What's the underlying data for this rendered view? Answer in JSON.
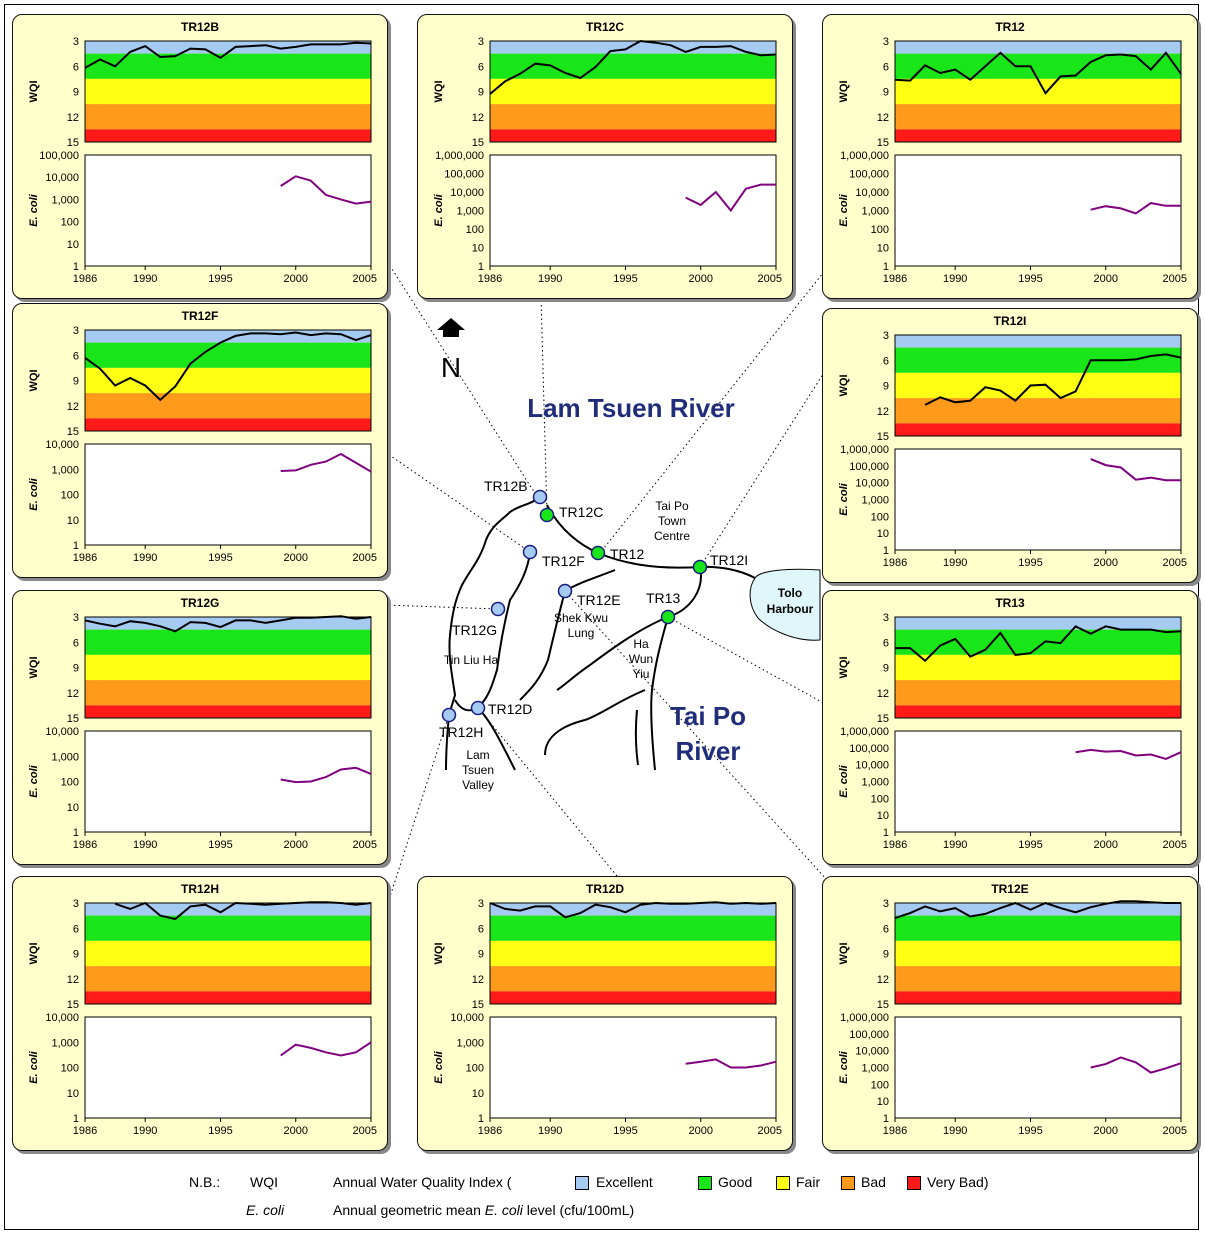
{
  "colors": {
    "excellent": "#a6cbf2",
    "good": "#19e619",
    "fair": "#ffff14",
    "bad": "#ff9a1a",
    "very_bad": "#ff1a1a",
    "wqi_line": "#000000",
    "ecoli_line": "#800080",
    "panel_bg": "#ffffcc",
    "river_label": "#1f2d7a"
  },
  "chart_data": [
    {
      "type": "line",
      "title": "TR12B",
      "wqi_ylabel": "WQI",
      "ecoli_ylabel": "E. coli",
      "x_ticks": [
        "1986",
        "1990",
        "1995",
        "2000",
        "2005"
      ],
      "wqi_ticks": [
        "3",
        "6",
        "9",
        "12",
        "15"
      ],
      "wqi_ylim": [
        3,
        15
      ],
      "ecoli_ticks": [
        "1",
        "10",
        "100",
        "1,000",
        "10,000",
        "100,000"
      ],
      "ecoli_ylim": [
        1,
        100000
      ],
      "wqi": {
        "x": [
          1986,
          1987,
          1988,
          1989,
          1990,
          1991,
          1992,
          1993,
          1994,
          1995,
          1996,
          1997,
          1998,
          1999,
          2000,
          2001,
          2002,
          2003,
          2004,
          2005
        ],
        "y": [
          6.2,
          5.2,
          6.0,
          4.3,
          3.6,
          4.9,
          4.8,
          3.9,
          4.0,
          5.0,
          3.7,
          3.6,
          3.5,
          3.9,
          3.7,
          3.4,
          3.4,
          3.4,
          3.2,
          3.3
        ]
      },
      "ecoli": {
        "x": [
          1999,
          2000,
          2001,
          2002,
          2003,
          2004,
          2005
        ],
        "y": [
          4000,
          11000,
          7000,
          1600,
          1000,
          650,
          800
        ]
      }
    },
    {
      "type": "line",
      "title": "TR12C",
      "wqi_ylabel": "WQI",
      "ecoli_ylabel": "E. coli",
      "x_ticks": [
        "1986",
        "1990",
        "1995",
        "2000",
        "2005"
      ],
      "wqi_ticks": [
        "3",
        "6",
        "9",
        "12",
        "15"
      ],
      "wqi_ylim": [
        3,
        15
      ],
      "ecoli_ticks": [
        "1",
        "10",
        "100",
        "1,000",
        "10,000",
        "100,000",
        "1,000,000"
      ],
      "ecoli_ylim": [
        1,
        1000000
      ],
      "wqi": {
        "x": [
          1986,
          1987,
          1988,
          1989,
          1990,
          1991,
          1992,
          1993,
          1994,
          1995,
          1996,
          1997,
          1998,
          1999,
          2000,
          2001,
          2002,
          2003,
          2004,
          2005
        ],
        "y": [
          9.3,
          7.8,
          6.9,
          5.7,
          5.9,
          6.8,
          7.4,
          6.1,
          4.2,
          4.0,
          3.0,
          3.2,
          3.5,
          4.3,
          3.7,
          3.7,
          3.6,
          4.3,
          4.7,
          4.6
        ]
      },
      "ecoli": {
        "x": [
          1999,
          2000,
          2001,
          2002,
          2003,
          2004,
          2005
        ],
        "y": [
          5000,
          2000,
          10000,
          1000,
          15000,
          25000,
          25000
        ]
      }
    },
    {
      "type": "line",
      "title": "TR12",
      "wqi_ylabel": "WQI",
      "ecoli_ylabel": "E. coli",
      "x_ticks": [
        "1986",
        "1990",
        "1995",
        "2000",
        "2005"
      ],
      "wqi_ticks": [
        "3",
        "6",
        "9",
        "12",
        "15"
      ],
      "wqi_ylim": [
        3,
        15
      ],
      "ecoli_ticks": [
        "1",
        "10",
        "100",
        "1,000",
        "10,000",
        "100,000",
        "1,000,000"
      ],
      "ecoli_ylim": [
        1,
        1000000
      ],
      "wqi": {
        "x": [
          1986,
          1987,
          1988,
          1989,
          1990,
          1991,
          1992,
          1993,
          1994,
          1995,
          1996,
          1997,
          1998,
          1999,
          2000,
          2001,
          2002,
          2003,
          2004,
          2005
        ],
        "y": [
          7.6,
          7.7,
          5.9,
          6.8,
          6.4,
          7.6,
          6.0,
          4.4,
          6.0,
          6.0,
          9.2,
          7.2,
          7.1,
          5.5,
          4.7,
          4.6,
          4.8,
          6.4,
          4.4,
          6.9
        ]
      },
      "ecoli": {
        "x": [
          1999,
          2000,
          2001,
          2002,
          2003,
          2004,
          2005
        ],
        "y": [
          1100,
          1700,
          1300,
          700,
          2500,
          1800,
          1800
        ]
      }
    },
    {
      "type": "line",
      "title": "TR12F",
      "wqi_ylabel": "WQI",
      "ecoli_ylabel": "E. coli",
      "x_ticks": [
        "1986",
        "1990",
        "1995",
        "2000",
        "2005"
      ],
      "wqi_ticks": [
        "3",
        "6",
        "9",
        "12",
        "15"
      ],
      "wqi_ylim": [
        3,
        15
      ],
      "ecoli_ticks": [
        "1",
        "10",
        "100",
        "1,000",
        "10,000"
      ],
      "ecoli_ylim": [
        1,
        10000
      ],
      "wqi": {
        "x": [
          1986,
          1987,
          1988,
          1989,
          1990,
          1991,
          1992,
          1993,
          1994,
          1995,
          1996,
          1997,
          1998,
          1999,
          2000,
          2001,
          2002,
          2003,
          2004,
          2005
        ],
        "y": [
          6.3,
          7.6,
          9.6,
          8.7,
          9.6,
          11.3,
          9.7,
          7.0,
          5.6,
          4.5,
          3.7,
          3.4,
          3.4,
          3.5,
          3.3,
          3.6,
          3.4,
          3.5,
          4.2,
          3.6
        ]
      },
      "ecoli": {
        "x": [
          1999,
          2000,
          2001,
          2002,
          2003,
          2004,
          2005
        ],
        "y": [
          850,
          900,
          1500,
          2000,
          4000,
          1800,
          800
        ]
      }
    },
    {
      "type": "line",
      "title": "TR12I",
      "wqi_ylabel": "WQI",
      "ecoli_ylabel": "E. coli",
      "x_ticks": [
        "1986",
        "1990",
        "1995",
        "2000",
        "2005"
      ],
      "wqi_ticks": [
        "3",
        "6",
        "9",
        "12",
        "15"
      ],
      "wqi_ylim": [
        3,
        15
      ],
      "ecoli_ticks": [
        "1",
        "10",
        "100",
        "1,000",
        "10,000",
        "100,000",
        "1,000,000"
      ],
      "ecoli_ylim": [
        1,
        1000000
      ],
      "wqi": {
        "x": [
          1988,
          1989,
          1990,
          1991,
          1992,
          1993,
          1994,
          1995,
          1996,
          1997,
          1998,
          1999,
          2000,
          2001,
          2002,
          2003,
          2004,
          2005
        ],
        "y": [
          11.3,
          10.4,
          11.0,
          10.8,
          9.2,
          9.6,
          10.8,
          9.0,
          8.9,
          10.5,
          9.7,
          6.0,
          6.0,
          6.0,
          5.9,
          5.5,
          5.3,
          5.7
        ]
      },
      "ecoli": {
        "x": [
          1999,
          2000,
          2001,
          2002,
          2003,
          2004,
          2005
        ],
        "y": [
          250000,
          110000,
          80000,
          15000,
          20000,
          14000,
          14000
        ]
      }
    },
    {
      "type": "line",
      "title": "TR12G",
      "wqi_ylabel": "WQI",
      "ecoli_ylabel": "E. coli",
      "x_ticks": [
        "1986",
        "1990",
        "1995",
        "2000",
        "2005"
      ],
      "wqi_ticks": [
        "3",
        "6",
        "9",
        "12",
        "15"
      ],
      "wqi_ylim": [
        3,
        15
      ],
      "ecoli_ticks": [
        "1",
        "10",
        "100",
        "1,000",
        "10,000"
      ],
      "ecoli_ylim": [
        1,
        10000
      ],
      "wqi": {
        "x": [
          1986,
          1987,
          1988,
          1989,
          1990,
          1991,
          1992,
          1993,
          1994,
          1995,
          1996,
          1997,
          1998,
          1999,
          2000,
          2001,
          2002,
          2003,
          2004,
          2005
        ],
        "y": [
          3.4,
          3.8,
          4.1,
          3.5,
          3.7,
          4.1,
          4.7,
          3.6,
          3.7,
          4.2,
          3.4,
          3.4,
          3.7,
          3.4,
          3.1,
          3.1,
          3.0,
          2.9,
          3.2,
          3.0
        ]
      },
      "ecoli": {
        "x": [
          1999,
          2000,
          2001,
          2002,
          2003,
          2004,
          2005
        ],
        "y": [
          120,
          95,
          100,
          150,
          300,
          350,
          200
        ]
      }
    },
    {
      "type": "line",
      "title": "TR13",
      "wqi_ylabel": "WQI",
      "ecoli_ylabel": "E. coli",
      "x_ticks": [
        "1986",
        "1990",
        "1995",
        "2000",
        "2005"
      ],
      "wqi_ticks": [
        "3",
        "6",
        "9",
        "12",
        "15"
      ],
      "wqi_ylim": [
        3,
        15
      ],
      "ecoli_ticks": [
        "1",
        "10",
        "100",
        "1,000",
        "10,000",
        "100,000",
        "1,000,000"
      ],
      "ecoli_ylim": [
        1,
        1000000
      ],
      "wqi": {
        "x": [
          1986,
          1987,
          1988,
          1989,
          1990,
          1991,
          1992,
          1993,
          1994,
          1995,
          1996,
          1997,
          1998,
          1999,
          2000,
          2001,
          2002,
          2003,
          2004,
          2005
        ],
        "y": [
          6.7,
          6.7,
          8.2,
          6.4,
          5.6,
          7.7,
          6.9,
          4.9,
          7.5,
          7.3,
          5.9,
          6.1,
          4.1,
          5.0,
          4.1,
          4.5,
          4.5,
          4.5,
          4.8,
          4.7
        ]
      },
      "ecoli": {
        "x": [
          1998,
          1999,
          2000,
          2001,
          2002,
          2003,
          2004,
          2005
        ],
        "y": [
          55000,
          75000,
          60000,
          65000,
          35000,
          40000,
          22000,
          55000
        ]
      }
    },
    {
      "type": "line",
      "title": "TR12H",
      "wqi_ylabel": "WQI",
      "ecoli_ylabel": "E. coli",
      "x_ticks": [
        "1986",
        "1990",
        "1995",
        "2000",
        "2005"
      ],
      "wqi_ticks": [
        "3",
        "6",
        "9",
        "12",
        "15"
      ],
      "wqi_ylim": [
        3,
        15
      ],
      "ecoli_ticks": [
        "1",
        "10",
        "100",
        "1,000",
        "10,000"
      ],
      "ecoli_ylim": [
        1,
        10000
      ],
      "wqi": {
        "x": [
          1988,
          1989,
          1990,
          1991,
          1992,
          1993,
          1994,
          1995,
          1996,
          1997,
          1998,
          1999,
          2000,
          2001,
          2002,
          2003,
          2004,
          2005
        ],
        "y": [
          3.1,
          3.7,
          3.0,
          4.5,
          4.9,
          3.4,
          3.2,
          4.1,
          3.0,
          3.1,
          3.2,
          3.1,
          3.0,
          2.9,
          2.9,
          3.0,
          3.2,
          3.0
        ]
      },
      "ecoli": {
        "x": [
          1999,
          2000,
          2001,
          2002,
          2003,
          2004,
          2005
        ],
        "y": [
          300,
          800,
          600,
          400,
          300,
          400,
          1000
        ]
      }
    },
    {
      "type": "line",
      "title": "TR12D",
      "wqi_ylabel": "WQI",
      "ecoli_ylabel": "E. coli",
      "x_ticks": [
        "1986",
        "1990",
        "1995",
        "2000",
        "2005"
      ],
      "wqi_ticks": [
        "3",
        "6",
        "9",
        "12",
        "15"
      ],
      "wqi_ylim": [
        3,
        15
      ],
      "ecoli_ticks": [
        "1",
        "10",
        "100",
        "1,000",
        "10,000"
      ],
      "ecoli_ylim": [
        1,
        10000
      ],
      "wqi": {
        "x": [
          1986,
          1987,
          1988,
          1989,
          1990,
          1991,
          1992,
          1993,
          1994,
          1995,
          1996,
          1997,
          1998,
          1999,
          2000,
          2001,
          2002,
          2003,
          2004,
          2005
        ],
        "y": [
          3.0,
          3.7,
          3.9,
          3.4,
          3.4,
          4.7,
          4.2,
          3.2,
          3.5,
          4.1,
          3.2,
          3.0,
          3.1,
          3.1,
          3.0,
          2.9,
          3.1,
          3.0,
          3.1,
          3.0
        ]
      },
      "ecoli": {
        "x": [
          1999,
          2000,
          2001,
          2002,
          2003,
          2004,
          2005
        ],
        "y": [
          140,
          170,
          210,
          100,
          100,
          120,
          170
        ]
      }
    },
    {
      "type": "line",
      "title": "TR12E",
      "wqi_ylabel": "WQI",
      "ecoli_ylabel": "E. coli",
      "x_ticks": [
        "1986",
        "1990",
        "1995",
        "2000",
        "2005"
      ],
      "wqi_ticks": [
        "3",
        "6",
        "9",
        "12",
        "15"
      ],
      "wqi_ylim": [
        3,
        15
      ],
      "ecoli_ticks": [
        "1",
        "10",
        "100",
        "1,000",
        "10,000",
        "100,000",
        "1,000,000"
      ],
      "ecoli_ylim": [
        1,
        1000000
      ],
      "wqi": {
        "x": [
          1986,
          1987,
          1988,
          1989,
          1990,
          1991,
          1992,
          1993,
          1994,
          1995,
          1996,
          1997,
          1998,
          1999,
          2000,
          2001,
          2002,
          2003,
          2004,
          2005
        ],
        "y": [
          4.8,
          4.2,
          3.4,
          4.0,
          3.6,
          4.6,
          4.3,
          3.6,
          3.0,
          3.8,
          3.0,
          3.6,
          4.1,
          3.5,
          3.1,
          2.8,
          2.8,
          2.9,
          3.0,
          3.0
        ]
      },
      "ecoli": {
        "x": [
          1999,
          2000,
          2001,
          2002,
          2003,
          2004,
          2005
        ],
        "y": [
          1000,
          1600,
          4000,
          2000,
          500,
          900,
          1800
        ]
      }
    }
  ],
  "map": {
    "north_label": "N",
    "lam_tsuen_label": "Lam Tsuen River",
    "tai_po_label_1": "Tai Po",
    "tai_po_label_2": "River",
    "tolo_1": "Tolo",
    "tolo_2": "Harbour",
    "tai_po_town": [
      "Tai Po",
      "Town",
      "Centre"
    ],
    "tin_liu_ha": "Tin Liu Ha",
    "shek_kwu_lung": [
      "Shek Kwu",
      "Lung"
    ],
    "ha_wun_yiu": [
      "Ha",
      "Wun",
      "Yiu"
    ],
    "lam_tsuen_valley": [
      "Lam",
      "Tsuen",
      "Valley"
    ],
    "stations": [
      {
        "name": "TR12B",
        "status": "excellent"
      },
      {
        "name": "TR12C",
        "status": "good"
      },
      {
        "name": "TR12F",
        "status": "excellent"
      },
      {
        "name": "TR12",
        "status": "good"
      },
      {
        "name": "TR12I",
        "status": "good"
      },
      {
        "name": "TR12E",
        "status": "excellent"
      },
      {
        "name": "TR13",
        "status": "good"
      },
      {
        "name": "TR12G",
        "status": "excellent"
      },
      {
        "name": "TR12D",
        "status": "excellent"
      },
      {
        "name": "TR12H",
        "status": "excellent"
      }
    ]
  },
  "legend": {
    "nb": "N.B.:",
    "wqi_label": "WQI",
    "wqi_desc": "Annual Water Quality Index (",
    "excellent": "Excellent",
    "good": "Good",
    "fair": "Fair",
    "bad": "Bad",
    "very_bad": "Very Bad)",
    "ecoli_label": "E. coli",
    "ecoli_desc_1": "Annual geometric mean",
    "ecoli_desc_2": "E. coli",
    "ecoli_desc_3": "level (cfu/100mL)"
  }
}
